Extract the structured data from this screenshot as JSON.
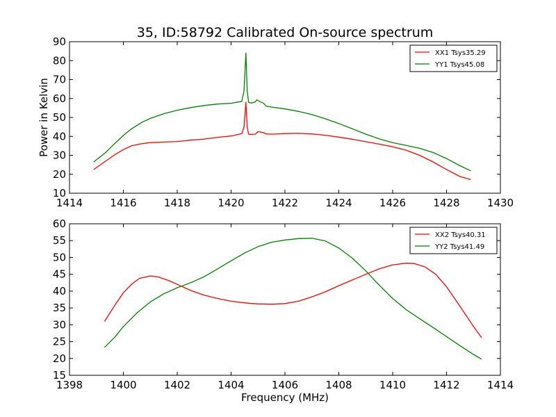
{
  "title": "35, ID:58792 Calibrated On-source spectrum",
  "chart_data": [
    {
      "type": "line",
      "ylabel": "Power in Kelvin",
      "xlabel": "",
      "xlim": [
        1414,
        1430
      ],
      "ylim": [
        10,
        90
      ],
      "xticks": [
        "1414",
        "1416",
        "1418",
        "1420",
        "1422",
        "1424",
        "1426",
        "1428",
        "1430"
      ],
      "yticks": [
        "10",
        "20",
        "30",
        "40",
        "50",
        "60",
        "70",
        "80",
        "90"
      ],
      "legend_position": "top-right",
      "series": [
        {
          "name": "XX1 Tsys35.29",
          "color": "#ff0000",
          "x": [
            1414.9,
            1415.3,
            1415.7,
            1416.0,
            1416.3,
            1416.7,
            1417.0,
            1417.5,
            1418.0,
            1418.5,
            1419.0,
            1419.5,
            1420.0,
            1420.4,
            1420.48,
            1420.55,
            1420.6,
            1420.65,
            1420.75,
            1420.9,
            1421.0,
            1421.2,
            1421.3,
            1421.5,
            1422.0,
            1422.5,
            1423.0,
            1423.5,
            1424.0,
            1424.5,
            1425.0,
            1425.5,
            1426.0,
            1426.5,
            1427.0,
            1427.5,
            1428.0,
            1428.5,
            1428.9
          ],
          "y": [
            22.5,
            26.5,
            30.5,
            33,
            35,
            36.2,
            36.7,
            37,
            37.3,
            38,
            38.6,
            39.5,
            40.2,
            41.5,
            45,
            58,
            45,
            41.2,
            41,
            41.2,
            42.5,
            42,
            41.3,
            41.2,
            41.5,
            41.6,
            41.3,
            40.6,
            39.6,
            38.5,
            37.2,
            35.9,
            34.5,
            32.7,
            30,
            26.5,
            22.5,
            18.8,
            17.2
          ]
        },
        {
          "name": "YY1 Tsys45.08",
          "color": "#008000",
          "x": [
            1414.9,
            1415.3,
            1415.7,
            1416.0,
            1416.3,
            1416.7,
            1417.0,
            1417.5,
            1418.0,
            1418.5,
            1419.0,
            1419.5,
            1420.0,
            1420.4,
            1420.48,
            1420.55,
            1420.6,
            1420.65,
            1420.75,
            1420.9,
            1420.95,
            1421.05,
            1421.2,
            1421.3,
            1421.5,
            1422.0,
            1422.5,
            1423.0,
            1423.5,
            1424.0,
            1424.5,
            1425.0,
            1425.5,
            1426.0,
            1426.5,
            1427.0,
            1427.5,
            1428.0,
            1428.5,
            1428.9
          ],
          "y": [
            26.5,
            31,
            36.5,
            40.5,
            44,
            47.5,
            49.5,
            52,
            53.8,
            55.2,
            56.3,
            57.1,
            57.5,
            58.5,
            64,
            84,
            64,
            58,
            57.6,
            58.2,
            59.3,
            58.5,
            57.6,
            56,
            55.5,
            54.5,
            53.2,
            51.5,
            49.3,
            46.8,
            44,
            41.2,
            38.7,
            36.7,
            35.2,
            33.7,
            31.5,
            28.3,
            24.5,
            21.8
          ]
        }
      ]
    },
    {
      "type": "line",
      "ylabel": "",
      "xlabel": "Frequency (MHz)",
      "xlim": [
        1398,
        1414
      ],
      "ylim": [
        15,
        60
      ],
      "xticks": [
        "1398",
        "1400",
        "1402",
        "1404",
        "1406",
        "1408",
        "1410",
        "1412",
        "1414"
      ],
      "yticks": [
        "15",
        "20",
        "25",
        "30",
        "35",
        "40",
        "45",
        "50",
        "55",
        "60"
      ],
      "legend_position": "top-right",
      "series": [
        {
          "name": "XX2 Tsys40.31",
          "color": "#ff0000",
          "x": [
            1399.3,
            1399.7,
            1400.0,
            1400.3,
            1400.6,
            1401.0,
            1401.3,
            1401.7,
            1402.0,
            1402.5,
            1403.0,
            1403.5,
            1404.0,
            1404.5,
            1405.0,
            1405.5,
            1406.0,
            1406.5,
            1407.0,
            1407.5,
            1408.0,
            1408.5,
            1409.0,
            1409.5,
            1410.0,
            1410.5,
            1410.8,
            1411.2,
            1411.6,
            1412.0,
            1412.5,
            1413.0,
            1413.3
          ],
          "y": [
            31,
            36,
            39.5,
            42,
            43.8,
            44.5,
            44.2,
            43.1,
            42,
            40.2,
            38.8,
            37.8,
            37,
            36.5,
            36.2,
            36.1,
            36.3,
            37,
            38.3,
            39.8,
            41.6,
            43.3,
            45,
            46.6,
            47.8,
            48.3,
            48.2,
            47.2,
            45,
            41.3,
            35.5,
            29.5,
            26.2
          ]
        },
        {
          "name": "YY2 Tsys41.49",
          "color": "#008000",
          "x": [
            1399.3,
            1399.7,
            1400.0,
            1400.5,
            1401.0,
            1401.5,
            1402.0,
            1402.5,
            1403.0,
            1403.5,
            1404.0,
            1404.5,
            1405.0,
            1405.5,
            1406.0,
            1406.5,
            1407.0,
            1407.5,
            1408.0,
            1408.5,
            1409.0,
            1409.5,
            1410.0,
            1410.5,
            1411.0,
            1411.5,
            1412.0,
            1412.5,
            1413.0,
            1413.3
          ],
          "y": [
            23.3,
            26.5,
            29.5,
            33.5,
            36.8,
            39.2,
            41,
            42.5,
            44.3,
            46.6,
            49,
            51.3,
            53.2,
            54.5,
            55.2,
            55.6,
            55.7,
            54.9,
            52.8,
            49.8,
            46,
            41.8,
            37.8,
            34.5,
            31.8,
            29.2,
            26.5,
            23.8,
            21.2,
            19.8
          ]
        }
      ]
    }
  ]
}
